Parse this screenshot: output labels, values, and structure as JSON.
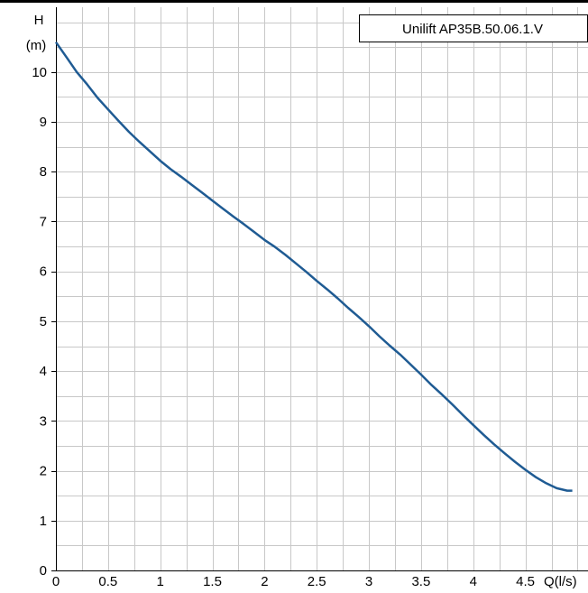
{
  "chart_data": {
    "type": "line",
    "legend": "Unilift AP35B.50.06.1.V",
    "legend_placement": "top-right",
    "y_axis_label_line1": "H",
    "y_axis_label_line2": "(m)",
    "x_axis_label": "Q(l/s)",
    "x_ticks": [
      "0",
      "0.5",
      "1",
      "1.5",
      "2",
      "2.5",
      "3",
      "3.5",
      "4",
      "4.5"
    ],
    "y_ticks": [
      "0",
      "1",
      "2",
      "3",
      "4",
      "5",
      "6",
      "7",
      "8",
      "9",
      "10"
    ],
    "xlim": [
      0,
      5.1
    ],
    "ylim": [
      0,
      11.3
    ],
    "grid": true,
    "colors": {
      "curve": "#1f5b93",
      "grid": "#c8c8c8",
      "axis": "#000000"
    },
    "series": [
      {
        "x": [
          0,
          0.1,
          0.2,
          0.3,
          0.4,
          0.5,
          0.6,
          0.7,
          0.8,
          0.9,
          1.0,
          1.1,
          1.2,
          1.3,
          1.4,
          1.5,
          1.6,
          1.7,
          1.8,
          1.9,
          2.0,
          2.1,
          2.2,
          2.3,
          2.4,
          2.5,
          2.6,
          2.7,
          2.8,
          2.9,
          3.0,
          3.1,
          3.2,
          3.3,
          3.4,
          3.5,
          3.6,
          3.7,
          3.8,
          3.9,
          4.0,
          4.1,
          4.2,
          4.3,
          4.4,
          4.5,
          4.6,
          4.7,
          4.8,
          4.9,
          4.95
        ],
        "y": [
          10.6,
          10.3,
          10.0,
          9.75,
          9.48,
          9.25,
          9.02,
          8.8,
          8.6,
          8.41,
          8.22,
          8.05,
          7.9,
          7.74,
          7.58,
          7.42,
          7.26,
          7.1,
          6.95,
          6.79,
          6.63,
          6.49,
          6.33,
          6.16,
          5.99,
          5.81,
          5.64,
          5.46,
          5.27,
          5.09,
          4.9,
          4.7,
          4.51,
          4.33,
          4.13,
          3.93,
          3.72,
          3.53,
          3.33,
          3.12,
          2.92,
          2.72,
          2.53,
          2.35,
          2.18,
          2.02,
          1.87,
          1.75,
          1.65,
          1.6,
          1.6
        ]
      }
    ]
  }
}
